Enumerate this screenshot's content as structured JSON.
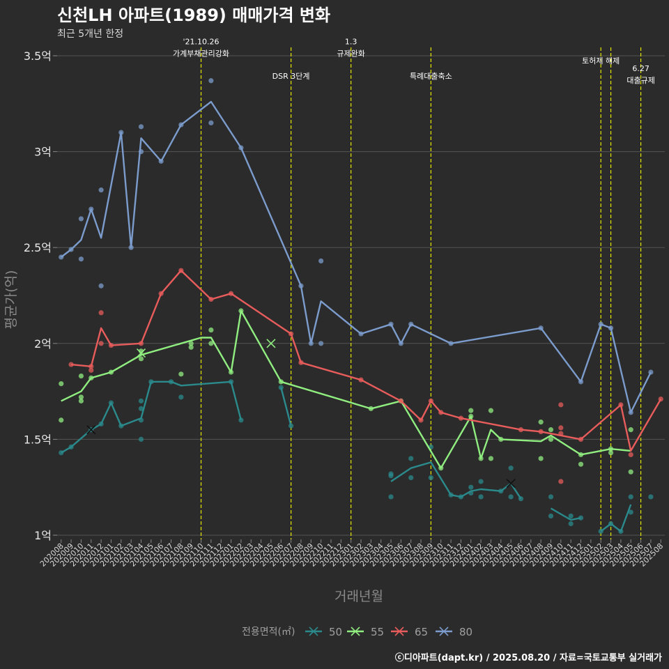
{
  "title": "신천LH 아파트(1989) 매매가격 변화",
  "subtitle": "최근 5개년 한정",
  "footer": "ⓒ디아파트(dapt.kr) / 2025.08.20 / 자료=국토교통부 실거래가",
  "colors": {
    "background": "#2b2b2b",
    "grid": "#555555",
    "event_line": "#e6e600",
    "text": "#e8e8e8",
    "axis_title": "#8a8a8a"
  },
  "chart_data": {
    "type": "line",
    "xlabel": "거래년월",
    "ylabel": "평균가(억)",
    "ylim": [
      0.92,
      3.5
    ],
    "y_ticks": [
      {
        "value": 1,
        "label": "1억"
      },
      {
        "value": 1.5,
        "label": "1.5억"
      },
      {
        "value": 2,
        "label": "2억"
      },
      {
        "value": 2.5,
        "label": "2.5억"
      },
      {
        "value": 3,
        "label": "3억"
      },
      {
        "value": 3.5,
        "label": "3.5억"
      }
    ],
    "x_ticks": [
      "202008",
      "202009",
      "202010",
      "202011",
      "202012",
      "202101",
      "202102",
      "202103",
      "202104",
      "202105",
      "202106",
      "202107",
      "202108",
      "202109",
      "202110",
      "202111",
      "202112",
      "202201",
      "202202",
      "202203",
      "202204",
      "202205",
      "202206",
      "202207",
      "202208",
      "202209",
      "202210",
      "202211",
      "202212",
      "202301",
      "202302",
      "202303",
      "202304",
      "202305",
      "202306",
      "202307",
      "202308",
      "202309",
      "202310",
      "202311",
      "202312",
      "202401",
      "202402",
      "202403",
      "202404",
      "202405",
      "202406",
      "202407",
      "202408",
      "202409",
      "202410",
      "202411",
      "202412",
      "202501",
      "202502",
      "202503",
      "202504",
      "202505",
      "202506",
      "202507",
      "202508"
    ],
    "legend": {
      "title": "전용면적(㎡)",
      "position": "bottom"
    },
    "events": [
      {
        "x": 14.0,
        "lines": [
          "'21.10.26",
          "가계부채관리강화"
        ],
        "y": 3.56
      },
      {
        "x": 23.0,
        "lines": [
          "DSR 3단계"
        ],
        "y": 3.38
      },
      {
        "x": 29.0,
        "lines": [
          "1.3",
          "규제완화"
        ],
        "y": 3.56
      },
      {
        "x": 37.0,
        "lines": [
          "특례대출축소"
        ],
        "y": 3.38
      },
      {
        "x": 54.0,
        "lines": [
          "토허제 해제"
        ],
        "y": 3.46
      },
      {
        "x": 55.0,
        "lines": [],
        "y": 3.46
      },
      {
        "x": 58.0,
        "lines": [
          "6.27",
          "대출규제"
        ],
        "y": 3.42
      }
    ],
    "series": [
      {
        "name": "50",
        "color": "#2a8a8c",
        "segments": [
          [
            [
              0,
              1.43
            ],
            [
              1,
              1.46
            ],
            [
              3,
              1.55
            ],
            [
              4,
              1.58
            ],
            [
              5,
              1.69
            ],
            [
              6,
              1.57
            ],
            [
              8,
              1.61
            ],
            [
              9,
              1.8
            ],
            [
              11,
              1.8
            ],
            [
              12,
              1.78
            ],
            [
              17,
              1.8
            ],
            [
              18,
              1.6
            ]
          ],
          [
            [
              22,
              1.77
            ],
            [
              23,
              1.57
            ]
          ],
          [
            [
              33,
              1.28
            ],
            [
              35,
              1.35
            ],
            [
              37,
              1.38
            ],
            [
              39,
              1.21
            ],
            [
              40,
              1.2
            ],
            [
              41,
              1.23
            ],
            [
              42,
              1.24
            ],
            [
              44,
              1.23
            ],
            [
              45,
              1.27
            ],
            [
              46,
              1.19
            ]
          ],
          [
            [
              49,
              1.14
            ],
            [
              51,
              1.08
            ],
            [
              52,
              1.09
            ]
          ],
          [
            [
              54,
              1.02
            ],
            [
              55,
              1.06
            ],
            [
              56,
              1.02
            ],
            [
              57,
              1.16
            ]
          ]
        ],
        "points": [
          [
            0,
            1.43
          ],
          [
            1,
            1.46
          ],
          [
            3,
            1.55
          ],
          [
            4,
            1.58
          ],
          [
            5,
            1.69
          ],
          [
            6,
            1.57
          ],
          [
            8,
            1.5
          ],
          [
            8,
            1.6
          ],
          [
            8,
            1.66
          ],
          [
            8,
            1.7
          ],
          [
            9,
            1.8
          ],
          [
            11,
            1.8
          ],
          [
            12,
            1.72
          ],
          [
            17,
            1.8
          ],
          [
            18,
            1.6
          ],
          [
            22,
            1.77
          ],
          [
            23,
            1.57
          ],
          [
            33,
            1.2
          ],
          [
            33,
            1.31
          ],
          [
            33,
            1.32
          ],
          [
            35,
            1.3
          ],
          [
            35,
            1.4
          ],
          [
            37,
            1.3
          ],
          [
            37,
            1.46
          ],
          [
            39,
            1.21
          ],
          [
            40,
            1.2
          ],
          [
            41,
            1.22
          ],
          [
            41,
            1.25
          ],
          [
            42,
            1.2
          ],
          [
            42,
            1.28
          ],
          [
            44,
            1.23
          ],
          [
            45,
            1.2
          ],
          [
            45,
            1.35
          ],
          [
            46,
            1.19
          ],
          [
            49,
            1.1
          ],
          [
            49,
            1.2
          ],
          [
            51,
            1.06
          ],
          [
            51,
            1.1
          ],
          [
            52,
            1.09
          ],
          [
            54,
            1.02
          ],
          [
            55,
            1.06
          ],
          [
            56,
            1.02
          ],
          [
            57,
            1.12
          ],
          [
            57,
            1.2
          ],
          [
            59,
            1.2
          ]
        ],
        "x_marks": [
          [
            3,
            1.55
          ],
          [
            45,
            1.27
          ]
        ]
      },
      {
        "name": "55",
        "color": "#90ee80",
        "segments": [
          [
            [
              0,
              1.7
            ],
            [
              2,
              1.75
            ],
            [
              3,
              1.82
            ],
            [
              5,
              1.85
            ],
            [
              8,
              1.94
            ],
            [
              12,
              2.0
            ],
            [
              14,
              2.03
            ],
            [
              15,
              2.03
            ],
            [
              17,
              1.85
            ],
            [
              18,
              2.17
            ],
            [
              22,
              1.8
            ],
            [
              31,
              1.66
            ],
            [
              34,
              1.7
            ],
            [
              38,
              1.35
            ],
            [
              41,
              1.62
            ],
            [
              42,
              1.4
            ],
            [
              43,
              1.55
            ],
            [
              44,
              1.5
            ],
            [
              48,
              1.49
            ],
            [
              49,
              1.52
            ],
            [
              52,
              1.42
            ],
            [
              55,
              1.45
            ],
            [
              57,
              1.44
            ]
          ]
        ],
        "points": [
          [
            0,
            1.6
          ],
          [
            0,
            1.79
          ],
          [
            2,
            1.7
          ],
          [
            2,
            1.72
          ],
          [
            2,
            1.83
          ],
          [
            3,
            1.82
          ],
          [
            5,
            1.85
          ],
          [
            8,
            1.92
          ],
          [
            8,
            1.96
          ],
          [
            12,
            1.84
          ],
          [
            13,
            1.98
          ],
          [
            13,
            2.0
          ],
          [
            15,
            2.0
          ],
          [
            15,
            2.07
          ],
          [
            17,
            1.85
          ],
          [
            18,
            2.17
          ],
          [
            22,
            1.8
          ],
          [
            31,
            1.66
          ],
          [
            34,
            1.7
          ],
          [
            38,
            1.35
          ],
          [
            41,
            1.62
          ],
          [
            41,
            1.65
          ],
          [
            42,
            1.4
          ],
          [
            43,
            1.4
          ],
          [
            43,
            1.65
          ],
          [
            44,
            1.5
          ],
          [
            48,
            1.4
          ],
          [
            48,
            1.59
          ],
          [
            49,
            1.5
          ],
          [
            49,
            1.55
          ],
          [
            52,
            1.37
          ],
          [
            52,
            1.42
          ],
          [
            55,
            1.43
          ],
          [
            55,
            1.45
          ],
          [
            57,
            1.33
          ],
          [
            57,
            1.55
          ]
        ],
        "x_marks": [
          [
            8,
            1.95
          ],
          [
            21,
            2.0
          ]
        ]
      },
      {
        "name": "65",
        "color": "#e85c5c",
        "segments": [
          [
            [
              1,
              1.89
            ],
            [
              3,
              1.88
            ],
            [
              4,
              2.08
            ],
            [
              5,
              1.99
            ],
            [
              8,
              2.0
            ],
            [
              10,
              2.26
            ],
            [
              12,
              2.38
            ],
            [
              15,
              2.23
            ],
            [
              17,
              2.26
            ],
            [
              23,
              2.05
            ],
            [
              24,
              1.9
            ],
            [
              30,
              1.81
            ],
            [
              34,
              1.7
            ],
            [
              36,
              1.6
            ],
            [
              37,
              1.7
            ],
            [
              38,
              1.64
            ],
            [
              40,
              1.61
            ],
            [
              46,
              1.55
            ],
            [
              48,
              1.54
            ],
            [
              52,
              1.5
            ],
            [
              56,
              1.68
            ],
            [
              57,
              1.44
            ],
            [
              60,
              1.71
            ]
          ]
        ],
        "points": [
          [
            1,
            1.89
          ],
          [
            3,
            1.86
          ],
          [
            3,
            1.88
          ],
          [
            4,
            2.0
          ],
          [
            4,
            2.16
          ],
          [
            5,
            1.99
          ],
          [
            8,
            2.0
          ],
          [
            10,
            2.26
          ],
          [
            12,
            2.38
          ],
          [
            15,
            2.23
          ],
          [
            17,
            2.26
          ],
          [
            23,
            2.05
          ],
          [
            24,
            1.9
          ],
          [
            30,
            1.81
          ],
          [
            34,
            1.7
          ],
          [
            36,
            1.6
          ],
          [
            37,
            1.7
          ],
          [
            38,
            1.64
          ],
          [
            40,
            1.61
          ],
          [
            46,
            1.55
          ],
          [
            48,
            1.54
          ],
          [
            50,
            1.28
          ],
          [
            50,
            1.53
          ],
          [
            50,
            1.56
          ],
          [
            50,
            1.68
          ],
          [
            52,
            1.5
          ],
          [
            56,
            1.68
          ],
          [
            57,
            1.42
          ],
          [
            60,
            1.71
          ]
        ],
        "x_marks": []
      },
      {
        "name": "80",
        "color": "#7b9ccc",
        "segments": [
          [
            [
              0,
              2.45
            ],
            [
              1,
              2.49
            ],
            [
              2,
              2.54
            ],
            [
              3,
              2.7
            ],
            [
              4,
              2.55
            ],
            [
              6,
              3.1
            ],
            [
              7,
              2.5
            ],
            [
              8,
              3.07
            ],
            [
              10,
              2.95
            ],
            [
              12,
              3.14
            ],
            [
              15,
              3.26
            ],
            [
              18,
              3.02
            ],
            [
              24,
              2.3
            ],
            [
              25,
              2.0
            ],
            [
              26,
              2.22
            ],
            [
              30,
              2.05
            ],
            [
              33,
              2.1
            ],
            [
              34,
              2.0
            ],
            [
              35,
              2.1
            ],
            [
              39,
              2.0
            ],
            [
              48,
              2.08
            ],
            [
              52,
              1.8
            ],
            [
              54,
              2.1
            ],
            [
              55,
              2.08
            ],
            [
              57,
              1.64
            ],
            [
              59,
              1.85
            ]
          ]
        ],
        "points": [
          [
            0,
            2.45
          ],
          [
            1,
            2.49
          ],
          [
            2,
            2.44
          ],
          [
            2,
            2.65
          ],
          [
            3,
            2.7
          ],
          [
            4,
            2.3
          ],
          [
            4,
            2.8
          ],
          [
            6,
            3.1
          ],
          [
            7,
            2.5
          ],
          [
            8,
            3.0
          ],
          [
            8,
            3.13
          ],
          [
            10,
            2.95
          ],
          [
            12,
            3.14
          ],
          [
            15,
            3.15
          ],
          [
            15,
            3.37
          ],
          [
            18,
            3.02
          ],
          [
            24,
            2.3
          ],
          [
            25,
            2.0
          ],
          [
            26,
            2.0
          ],
          [
            26,
            2.43
          ],
          [
            30,
            2.05
          ],
          [
            33,
            2.1
          ],
          [
            34,
            2.0
          ],
          [
            35,
            2.1
          ],
          [
            39,
            2.0
          ],
          [
            48,
            2.08
          ],
          [
            52,
            1.8
          ],
          [
            54,
            2.1
          ],
          [
            55,
            2.08
          ],
          [
            57,
            1.64
          ],
          [
            59,
            1.85
          ]
        ],
        "x_marks": []
      }
    ]
  }
}
